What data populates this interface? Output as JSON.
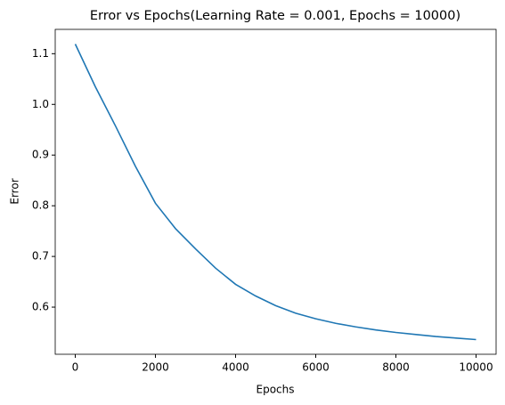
{
  "chart_data": {
    "type": "line",
    "title": "Error vs Epochs(Learning Rate = 0.001, Epochs = 10000)",
    "xlabel": "Epochs",
    "ylabel": "Error",
    "x": [
      0,
      500,
      1000,
      1500,
      2000,
      2500,
      3000,
      3500,
      4000,
      4500,
      5000,
      5500,
      6000,
      6500,
      7000,
      7500,
      8000,
      8500,
      9000,
      9500,
      10000
    ],
    "series": [
      {
        "name": "Error",
        "color": "#1f77b4",
        "values": [
          1.119,
          1.035,
          0.958,
          0.878,
          0.805,
          0.755,
          0.715,
          0.677,
          0.645,
          0.622,
          0.603,
          0.588,
          0.577,
          0.568,
          0.561,
          0.555,
          0.55,
          0.546,
          0.542,
          0.539,
          0.536
        ]
      }
    ],
    "xlim": [
      -500,
      10500
    ],
    "xticks": [
      0,
      2000,
      4000,
      6000,
      8000,
      10000
    ],
    "ylim": [
      0.507,
      1.148
    ],
    "yticks": [
      0.6,
      0.7,
      0.8,
      0.9,
      {
        "value": 1.0,
        "label": "1.0"
      },
      1.1
    ],
    "grid": false
  }
}
